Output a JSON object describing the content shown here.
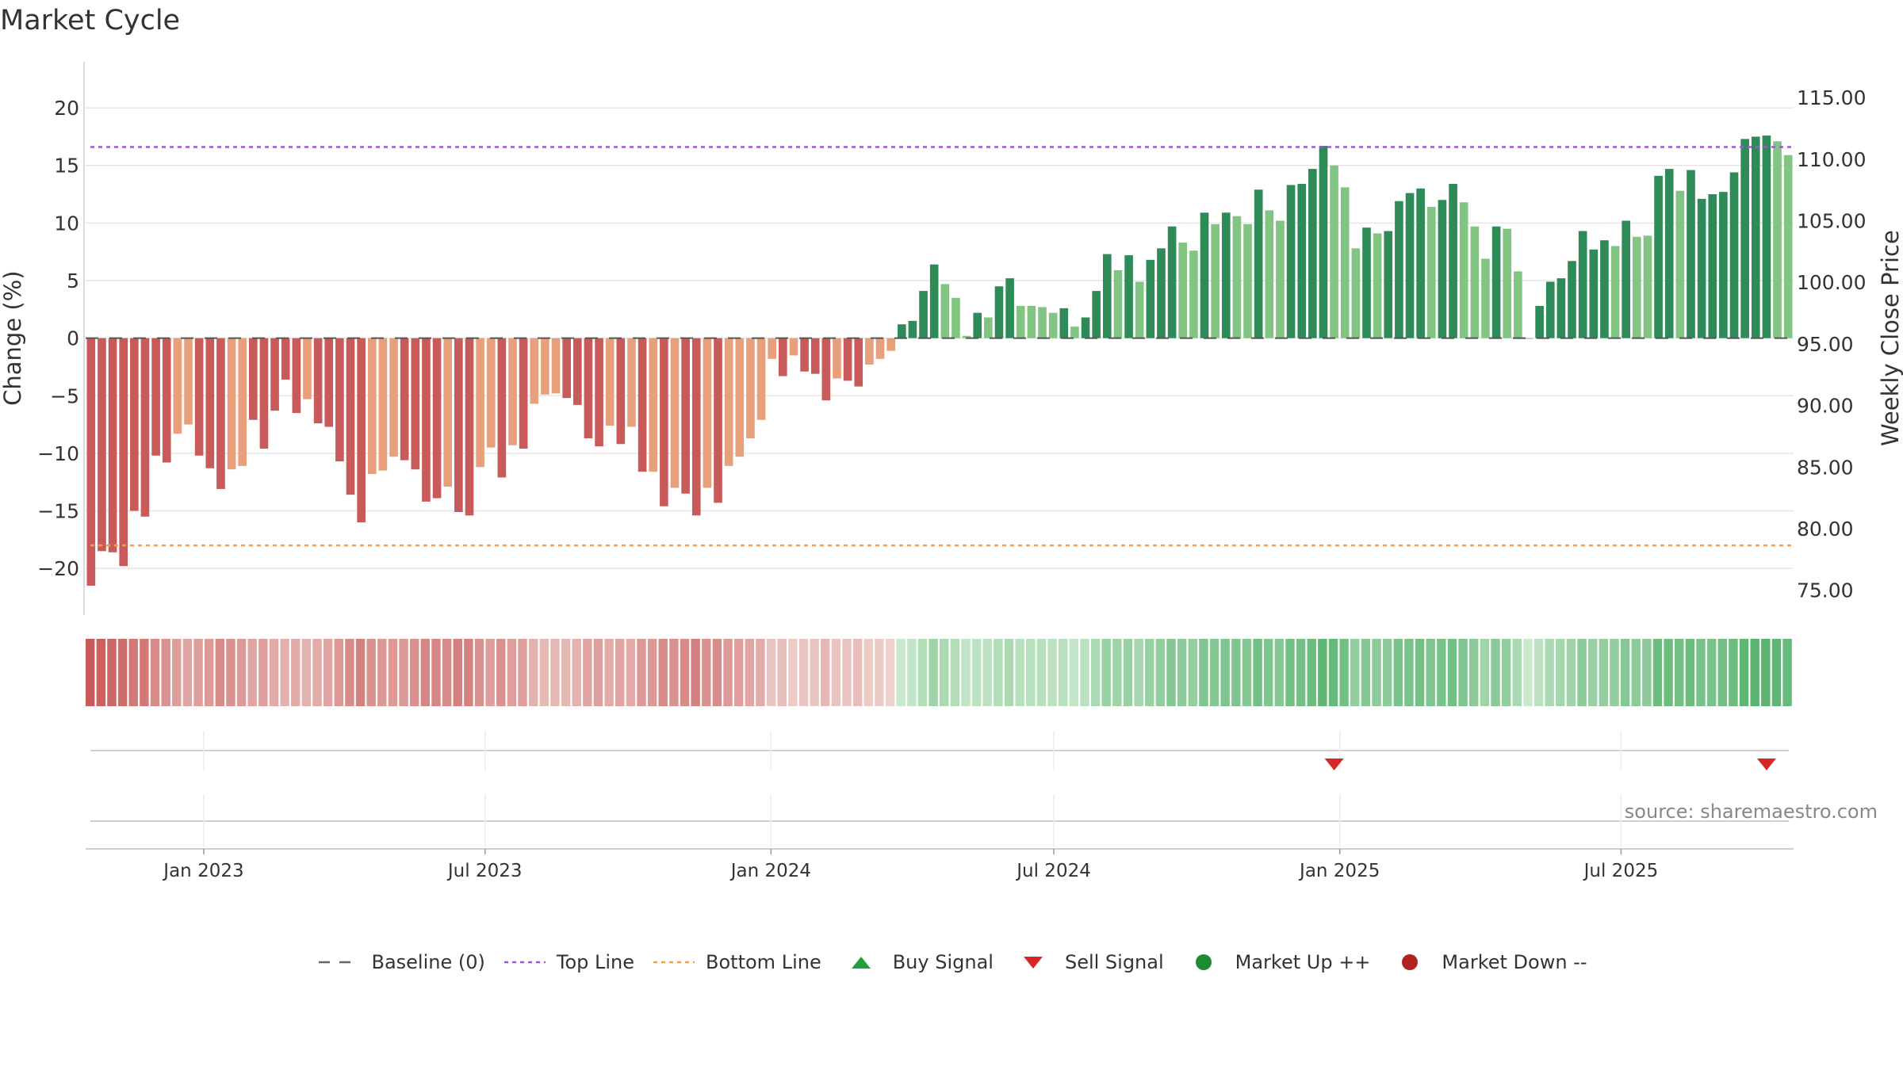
{
  "title": "Market Cycle",
  "source": "source: sharemaestro.com",
  "colors": {
    "neg_dark": "#c85a5a",
    "neg_light": "#e8a07c",
    "pos_dark": "#2e8b57",
    "pos_light": "#82c482",
    "top_line": "#9b59d0",
    "bottom_line": "#f0a050",
    "sell": "#d62728",
    "buy": "#1f9d3f",
    "market_up": "#1f8a2f",
    "market_down": "#b22222"
  },
  "chart_data": {
    "type": "bar",
    "title": "Market Cycle",
    "ylabel": "Change (%)",
    "y2label": "Weekly Close Price",
    "ylim": [
      -23.5,
      24
    ],
    "yticks": [
      -20,
      -15,
      -10,
      -5,
      0,
      5,
      10,
      15,
      20
    ],
    "ytick_labels": [
      "−20",
      "−15",
      "−10",
      "−5",
      "0",
      "5",
      "10",
      "15",
      "20"
    ],
    "y2lim": [
      73.5,
      117.9
    ],
    "y2ticks": [
      75,
      80,
      85,
      90,
      95,
      100,
      105,
      110,
      115
    ],
    "y2tick_labels": [
      "75.00",
      "80.00",
      "85.00",
      "90.00",
      "95.00",
      "100.00",
      "105.00",
      "110.00",
      "115.00"
    ],
    "top_line": 16.6,
    "bottom_line": -18,
    "baseline": 0,
    "x_start": "2022-10-17",
    "x_end": "2025-10-20",
    "x_ticks": [
      {
        "label": "Jan 2023",
        "date": "2023-01-01"
      },
      {
        "label": "Jul 2023",
        "date": "2023-07-01"
      },
      {
        "label": "Jan 2024",
        "date": "2024-01-01"
      },
      {
        "label": "Jul 2024",
        "date": "2024-07-01"
      },
      {
        "label": "Jan 2025",
        "date": "2025-01-01"
      },
      {
        "label": "Jul 2025",
        "date": "2025-07-01"
      }
    ],
    "values": [
      -21.5,
      -18.5,
      -18.6,
      -19.8,
      -15,
      -15.5,
      -10.2,
      -10.8,
      -8.3,
      -7.5,
      -10.2,
      -11.3,
      -13.1,
      -11.4,
      -11.1,
      -7.1,
      -9.6,
      -6.3,
      -3.6,
      -6.5,
      -5.3,
      -7.4,
      -7.7,
      -10.7,
      -13.6,
      -16,
      -11.8,
      -11.5,
      -10.3,
      -10.6,
      -11.4,
      -14.2,
      -13.9,
      -12.9,
      -15.1,
      -15.4,
      -11.2,
      -9.5,
      -12.1,
      -9.3,
      -9.6,
      -5.7,
      -4.9,
      -4.8,
      -5.2,
      -5.8,
      -8.7,
      -9.4,
      -7.6,
      -9.2,
      -7.7,
      -11.6,
      -11.6,
      -14.6,
      -13,
      -13.5,
      -15.4,
      -13,
      -14.3,
      -11.1,
      -10.3,
      -8.7,
      -7.1,
      -1.8,
      -3.3,
      -1.5,
      -2.9,
      -3.1,
      -5.4,
      -3.5,
      -3.7,
      -4.2,
      -2.3,
      -1.8,
      -1.1,
      1.2,
      1.5,
      4.1,
      6.4,
      4.7,
      3.5,
      0.2,
      2.2,
      1.8,
      4.5,
      5.2,
      2.8,
      2.8,
      2.7,
      2.2,
      2.6,
      1,
      1.8,
      4.1,
      7.3,
      5.9,
      7.2,
      4.9,
      6.8,
      7.8,
      9.7,
      8.3,
      7.6,
      10.9,
      9.9,
      10.9,
      10.6,
      9.9,
      12.9,
      11.1,
      10.2,
      13.3,
      13.4,
      14.7,
      16.7,
      15,
      13.1,
      7.8,
      9.6,
      9.1,
      9.3,
      11.9,
      12.6,
      13,
      11.4,
      12,
      13.4,
      11.8,
      9.7,
      6.9,
      9.7,
      9.5,
      5.8,
      0,
      2.8,
      4.9,
      5.2,
      6.7,
      9.3,
      7.7,
      8.5,
      8,
      10.2,
      8.8,
      8.9,
      14.1,
      14.7,
      12.8,
      14.6,
      12.1,
      12.5,
      12.7,
      14.4,
      17.3,
      17.5,
      17.6,
      17.1,
      15.9
    ],
    "shades": [
      "d",
      "d",
      "d",
      "d",
      "d",
      "d",
      "d",
      "d",
      "l",
      "l",
      "d",
      "d",
      "d",
      "l",
      "l",
      "d",
      "d",
      "d",
      "d",
      "d",
      "l",
      "d",
      "d",
      "d",
      "d",
      "d",
      "l",
      "l",
      "l",
      "d",
      "d",
      "d",
      "d",
      "l",
      "d",
      "d",
      "l",
      "l",
      "d",
      "l",
      "d",
      "l",
      "l",
      "l",
      "d",
      "d",
      "d",
      "d",
      "l",
      "d",
      "l",
      "d",
      "l",
      "d",
      "l",
      "d",
      "d",
      "l",
      "d",
      "l",
      "l",
      "l",
      "l",
      "l",
      "d",
      "l",
      "d",
      "d",
      "d",
      "l",
      "d",
      "d",
      "l",
      "l",
      "l",
      "d",
      "d",
      "d",
      "d",
      "l",
      "l",
      "l",
      "d",
      "l",
      "d",
      "d",
      "l",
      "l",
      "l",
      "l",
      "d",
      "l",
      "d",
      "d",
      "d",
      "l",
      "d",
      "l",
      "d",
      "d",
      "d",
      "l",
      "l",
      "d",
      "l",
      "d",
      "l",
      "l",
      "d",
      "l",
      "l",
      "d",
      "d",
      "d",
      "d",
      "l",
      "l",
      "l",
      "d",
      "l",
      "d",
      "d",
      "d",
      "d",
      "l",
      "d",
      "d",
      "l",
      "l",
      "l",
      "d",
      "l",
      "l",
      "l",
      "d",
      "d",
      "d",
      "d",
      "d",
      "d",
      "d",
      "l",
      "d",
      "l",
      "l",
      "d",
      "d",
      "l",
      "d",
      "d",
      "d",
      "d",
      "d",
      "d",
      "d",
      "d",
      "l",
      "l"
    ],
    "sell_signals": [
      115,
      155
    ],
    "buy_signals": [],
    "heatmap_levels": [
      1.0,
      0.95,
      0.9,
      0.85,
      0.75,
      0.75,
      0.6,
      0.55,
      0.45,
      0.4,
      0.45,
      0.5,
      0.6,
      0.55,
      0.5,
      0.4,
      0.45,
      0.35,
      0.3,
      0.35,
      0.3,
      0.35,
      0.4,
      0.5,
      0.6,
      0.7,
      0.55,
      0.5,
      0.5,
      0.5,
      0.55,
      0.65,
      0.65,
      0.6,
      0.7,
      0.7,
      0.55,
      0.45,
      0.55,
      0.45,
      0.45,
      0.3,
      0.25,
      0.25,
      0.25,
      0.3,
      0.4,
      0.45,
      0.35,
      0.4,
      0.35,
      0.5,
      0.5,
      0.6,
      0.55,
      0.6,
      0.7,
      0.55,
      0.6,
      0.5,
      0.45,
      0.4,
      0.35,
      0.15,
      0.2,
      0.1,
      0.15,
      0.15,
      0.25,
      0.15,
      0.15,
      0.2,
      0.1,
      0.1,
      0.05,
      0.1,
      0.15,
      0.3,
      0.45,
      0.35,
      0.3,
      0.15,
      0.2,
      0.2,
      0.3,
      0.35,
      0.25,
      0.25,
      0.25,
      0.2,
      0.25,
      0.15,
      0.2,
      0.35,
      0.5,
      0.45,
      0.5,
      0.4,
      0.5,
      0.55,
      0.65,
      0.6,
      0.55,
      0.7,
      0.65,
      0.7,
      0.7,
      0.65,
      0.8,
      0.7,
      0.65,
      0.8,
      0.8,
      0.85,
      0.95,
      0.9,
      0.8,
      0.55,
      0.65,
      0.6,
      0.6,
      0.75,
      0.75,
      0.8,
      0.7,
      0.75,
      0.8,
      0.7,
      0.6,
      0.45,
      0.6,
      0.55,
      0.35,
      0.1,
      0.2,
      0.35,
      0.4,
      0.45,
      0.6,
      0.5,
      0.55,
      0.55,
      0.65,
      0.6,
      0.6,
      0.85,
      0.85,
      0.8,
      0.85,
      0.75,
      0.75,
      0.8,
      0.85,
      0.95,
      1.0,
      1.0,
      0.95,
      0.9
    ]
  },
  "legend": [
    {
      "label": "Baseline (0)",
      "symbol": "dash"
    },
    {
      "label": "Top Line",
      "symbol": "dot-purple"
    },
    {
      "label": "Bottom Line",
      "symbol": "dot-orange"
    },
    {
      "label": "Buy Signal",
      "symbol": "triangle-up"
    },
    {
      "label": "Sell Signal",
      "symbol": "triangle-down"
    },
    {
      "label": "Market Up ++",
      "symbol": "circle-green"
    },
    {
      "label": "Market Down --",
      "symbol": "circle-red"
    }
  ]
}
